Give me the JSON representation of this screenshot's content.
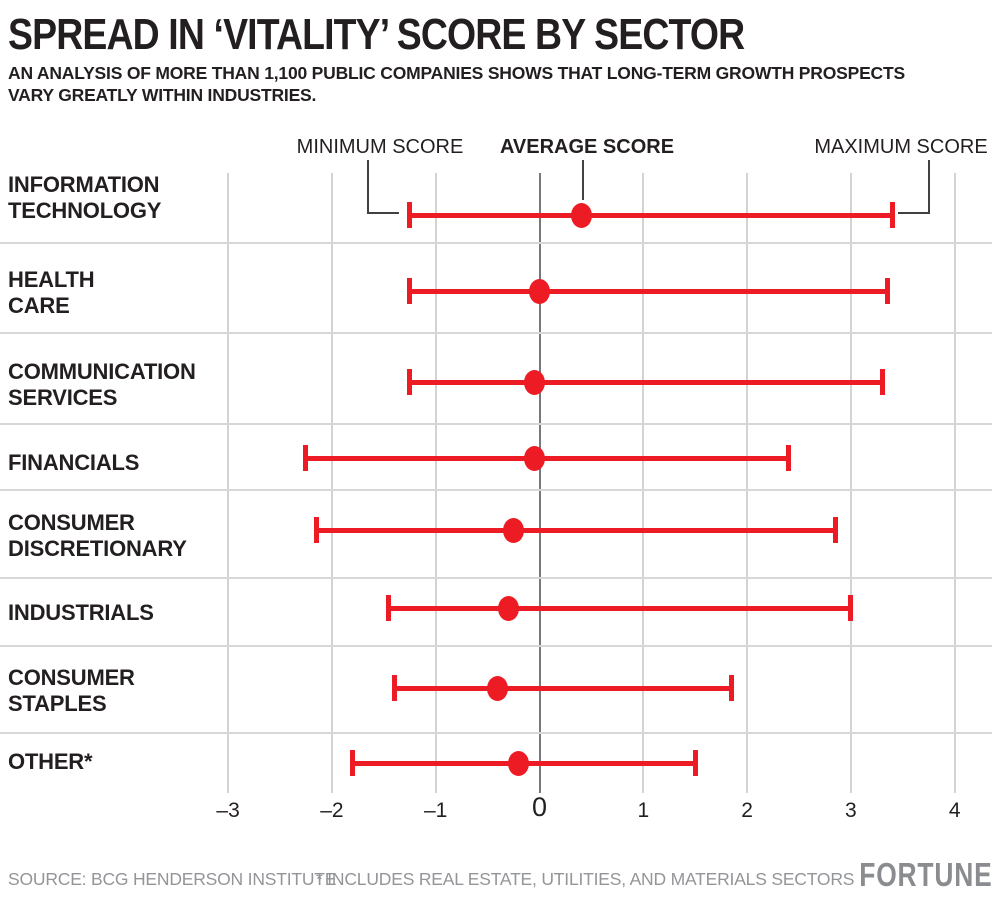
{
  "header": {
    "title": "SPREAD IN ‘VITALITY’ SCORE BY SECTOR",
    "subtitle_lines": [
      "AN ANALYSIS OF MORE THAN 1,100 PUBLIC COMPANIES SHOWS THAT LONG-TERM GROWTH PROSPECTS",
      "VARY GREATLY WITHIN INDUSTRIES."
    ]
  },
  "legend": {
    "min_label": "MINIMUM SCORE",
    "avg_label": "AVERAGE SCORE",
    "max_label": "MAXIMUM SCORE"
  },
  "chart_data": {
    "type": "range-dot",
    "title": "SPREAD IN ‘VITALITY’ SCORE BY SECTOR",
    "legend_entries": [
      "MINIMUM SCORE",
      "AVERAGE SCORE",
      "MAXIMUM SCORE"
    ],
    "grid": true,
    "zero_line": true,
    "xlim": [
      -3.5,
      4.4
    ],
    "xticks": [
      {
        "value": -3,
        "label": "–3"
      },
      {
        "value": -2,
        "label": "–2"
      },
      {
        "value": -1,
        "label": "–1"
      },
      {
        "value": 0,
        "label": "0"
      },
      {
        "value": 1,
        "label": "1"
      },
      {
        "value": 2,
        "label": "2"
      },
      {
        "value": 3,
        "label": "3"
      },
      {
        "value": 4,
        "label": "4"
      }
    ],
    "sectors": [
      {
        "label_lines": [
          "INFORMATION",
          "TECHNOLOGY"
        ],
        "min": -1.25,
        "avg": 0.4,
        "max": 3.4
      },
      {
        "label_lines": [
          "HEALTH",
          "CARE"
        ],
        "min": -1.25,
        "avg": 0.0,
        "max": 3.35
      },
      {
        "label_lines": [
          "COMMUNICATION",
          "SERVICES"
        ],
        "min": -1.25,
        "avg": -0.05,
        "max": 3.3
      },
      {
        "label_lines": [
          "FINANCIALS"
        ],
        "min": -2.25,
        "avg": -0.05,
        "max": 2.4
      },
      {
        "label_lines": [
          "CONSUMER",
          "DISCRETIONARY"
        ],
        "min": -2.15,
        "avg": -0.25,
        "max": 2.85
      },
      {
        "label_lines": [
          "INDUSTRIALS"
        ],
        "min": -1.45,
        "avg": -0.3,
        "max": 3.0
      },
      {
        "label_lines": [
          "CONSUMER",
          "STAPLES"
        ],
        "min": -1.4,
        "avg": -0.4,
        "max": 1.85
      },
      {
        "label_lines": [
          "OTHER*"
        ],
        "min": -1.8,
        "avg": -0.2,
        "max": 1.5
      }
    ],
    "colors": {
      "accent": "#ed1c24",
      "grid": "#d1d3d4",
      "zero_line": "#77787b",
      "text": "#231f20",
      "muted": "#939598",
      "callout": "#414042"
    }
  },
  "footer": {
    "source": "SOURCE: BCG HENDERSON INSTITUTE",
    "note": "* INCLUDES REAL ESTATE, UTILITIES, AND MATERIALS SECTORS",
    "brand": "FORTUNE"
  }
}
